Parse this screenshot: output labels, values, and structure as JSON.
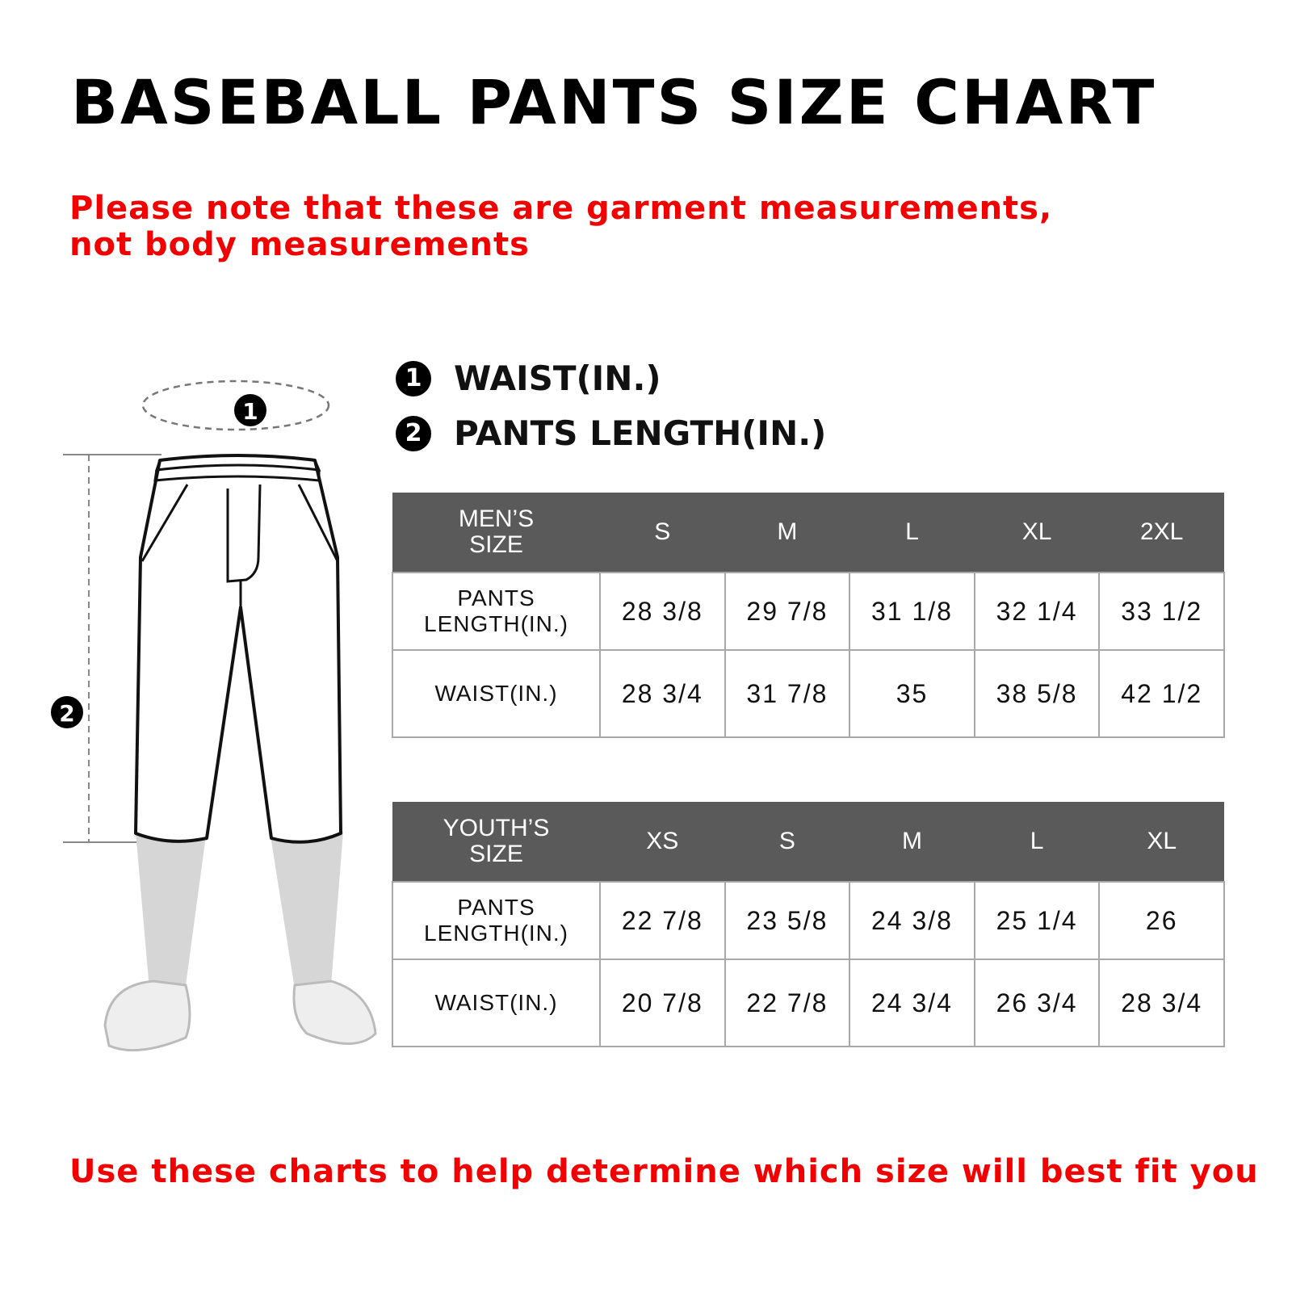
{
  "title": "BASEBALL PANTS SIZE CHART",
  "note": "Please note that these are garment measurements, not body measurements",
  "footer": "Use these charts to help determine which size will best fit you",
  "legend": [
    {
      "num": "1",
      "label": "WAIST(IN.)"
    },
    {
      "num": "2",
      "label": "PANTS LENGTH(IN.)"
    }
  ],
  "illustration": {
    "marker_1": "1",
    "marker_2": "2"
  },
  "mens": {
    "header_line1": "MEN’S",
    "header_line2": "SIZE",
    "sizes": [
      "S",
      "M",
      "L",
      "XL",
      "2XL"
    ],
    "rows": [
      {
        "label_line1": "PANTS",
        "label_line2": "LENGTH(IN.)",
        "values": [
          "28 3/8",
          "29 7/8",
          "31 1/8",
          "32 1/4",
          "33 1/2"
        ]
      },
      {
        "label_line1": "WAIST(IN.)",
        "label_line2": "",
        "values": [
          "28 3/4",
          "31 7/8",
          "35",
          "38 5/8",
          "42 1/2"
        ]
      }
    ]
  },
  "youth": {
    "header_line1": "YOUTH’S",
    "header_line2": "SIZE",
    "sizes": [
      "XS",
      "S",
      "M",
      "L",
      "XL"
    ],
    "rows": [
      {
        "label_line1": "PANTS",
        "label_line2": "LENGTH(IN.)",
        "values": [
          "22 7/8",
          "23 5/8",
          "24 3/8",
          "25 1/4",
          "26"
        ]
      },
      {
        "label_line1": "WAIST(IN.)",
        "label_line2": "",
        "values": [
          "20 7/8",
          "22 7/8",
          "24 3/4",
          "26 3/4",
          "28 3/4"
        ]
      }
    ]
  },
  "colors": {
    "header_bg": "#5a5a5a",
    "accent_red": "#f20000"
  }
}
